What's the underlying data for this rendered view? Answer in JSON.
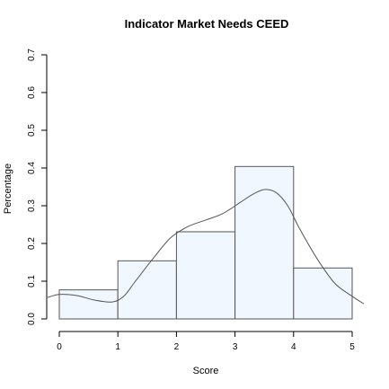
{
  "chart_data": {
    "type": "bar",
    "title": "Indicator Market Needs CEED",
    "xlabel": "Score",
    "ylabel": "Percentage",
    "xlim": [
      0,
      5
    ],
    "ylim": [
      0,
      0.7
    ],
    "x_ticks": [
      "0",
      "1",
      "2",
      "3",
      "4",
      "5"
    ],
    "y_ticks": [
      "0.0",
      "0.1",
      "0.2",
      "0.3",
      "0.4",
      "0.5",
      "0.6",
      "0.7"
    ],
    "bins": [
      {
        "start": 0,
        "end": 1,
        "value": 0.077
      },
      {
        "start": 1,
        "end": 2,
        "value": 0.154
      },
      {
        "start": 2,
        "end": 3,
        "value": 0.231
      },
      {
        "start": 3,
        "end": 4,
        "value": 0.404
      },
      {
        "start": 4,
        "end": 5,
        "value": 0.135
      }
    ],
    "density_curve": {
      "x": [
        -0.2,
        0.0,
        0.3,
        0.6,
        0.9,
        1.1,
        1.3,
        1.6,
        1.9,
        2.2,
        2.5,
        2.8,
        3.1,
        3.3,
        3.5,
        3.7,
        3.9,
        4.1,
        4.4,
        4.7,
        5.0,
        5.2
      ],
      "y": [
        0.057,
        0.065,
        0.062,
        0.05,
        0.045,
        0.06,
        0.1,
        0.16,
        0.215,
        0.245,
        0.262,
        0.28,
        0.31,
        0.33,
        0.343,
        0.335,
        0.3,
        0.24,
        0.16,
        0.095,
        0.06,
        0.04
      ]
    },
    "grid": false,
    "colors": {
      "bar_fill": "#f0f7ff",
      "bar_stroke": "#555555",
      "curve": "#555555"
    }
  }
}
